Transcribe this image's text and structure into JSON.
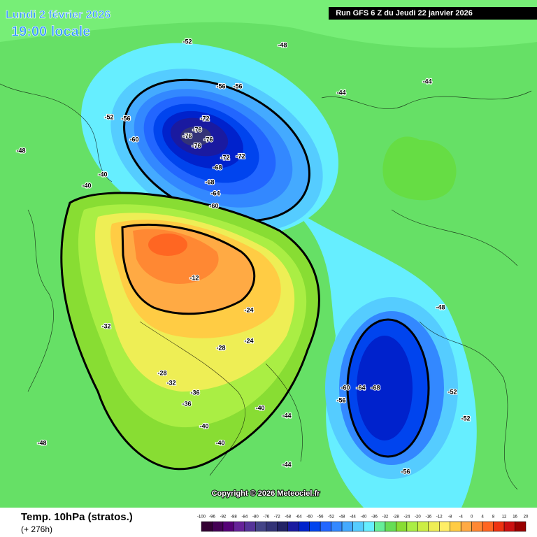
{
  "header": {
    "date": "Lundi 2 février 2026",
    "time": "19:00 locale",
    "run": "Run GFS 6 Z du Jeudi 22 janvier 2026"
  },
  "footer": {
    "title": "Temp. 10hPa (stratos.)",
    "lead": "(+ 276h)",
    "copyright": "Copyright © 2026 Meteociel.fr"
  },
  "legend": {
    "ticks": [
      -100,
      -96,
      -92,
      -88,
      -84,
      -80,
      -76,
      -72,
      -68,
      -64,
      -60,
      -56,
      -52,
      -48,
      -44,
      -40,
      -36,
      -32,
      -28,
      -24,
      -20,
      -16,
      -12,
      -8,
      -4,
      0,
      4,
      8,
      12,
      16,
      20
    ],
    "colors": [
      "#330033",
      "#440055",
      "#550077",
      "#662299",
      "#553399",
      "#444488",
      "#333377",
      "#222266",
      "#1a1aa0",
      "#0022cc",
      "#0044ee",
      "#2266ff",
      "#3388ff",
      "#44aaff",
      "#55ccff",
      "#66eeff",
      "#66ee99",
      "#66dd55",
      "#88dd33",
      "#aaee44",
      "#ccee44",
      "#eeee55",
      "#ffee66",
      "#ffcc44",
      "#ffaa44",
      "#ff8833",
      "#ff6622",
      "#ee3311",
      "#cc1111",
      "#990000"
    ]
  },
  "contour_labels": [
    "-76",
    "-76",
    "-76",
    "-72",
    "-76",
    "-72",
    "-72",
    "-68",
    "-68",
    "-64",
    "-60",
    "-56",
    "-56",
    "-60",
    "-56",
    "-52",
    "-52",
    "-48",
    "-48",
    "-44",
    "-44",
    "-40",
    "-40",
    "-40",
    "-12",
    "-24",
    "-24",
    "-28",
    "-28",
    "-32",
    "-32",
    "-36",
    "-36",
    "-40",
    "-40",
    "-60",
    "-64",
    "-68",
    "-56",
    "-52",
    "-52",
    "-56",
    "-48",
    "-44",
    "-44",
    "-48"
  ]
}
